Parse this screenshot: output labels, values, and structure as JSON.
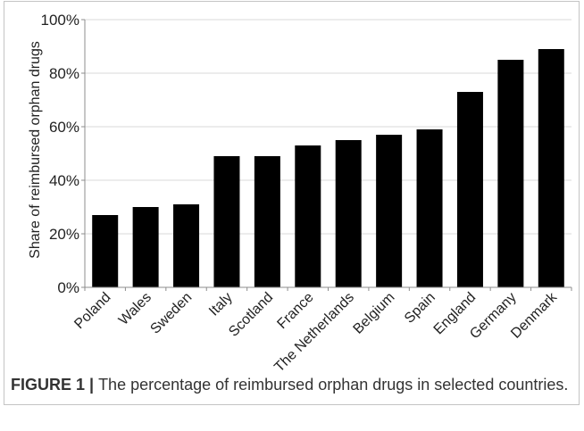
{
  "figure": {
    "caption_label": "FIGURE 1 |",
    "caption_text": "The percentage of reimbursed orphan drugs in selected countries."
  },
  "chart_data": {
    "type": "bar",
    "categories": [
      "Poland",
      "Wales",
      "Sweden",
      "Italy",
      "Scotland",
      "France",
      "The Netherlands",
      "Belgium",
      "Spain",
      "England",
      "Germany",
      "Denmark"
    ],
    "values": [
      27,
      30,
      31,
      49,
      49,
      53,
      55,
      57,
      59,
      73,
      85,
      89
    ],
    "value_unit": "%",
    "xlabel": "",
    "ylabel": "Share of reimbursed orphan drugs",
    "ylim": [
      0,
      100
    ],
    "yticks": [
      0,
      20,
      40,
      60,
      80,
      100
    ],
    "ytick_labels": [
      "0%",
      "20%",
      "40%",
      "60%",
      "80%",
      "100%"
    ],
    "grid": true,
    "legend": "none",
    "colors": {
      "bars": "#000000",
      "grid": "#d9d9d9",
      "axis": "#8c8c8c"
    }
  }
}
